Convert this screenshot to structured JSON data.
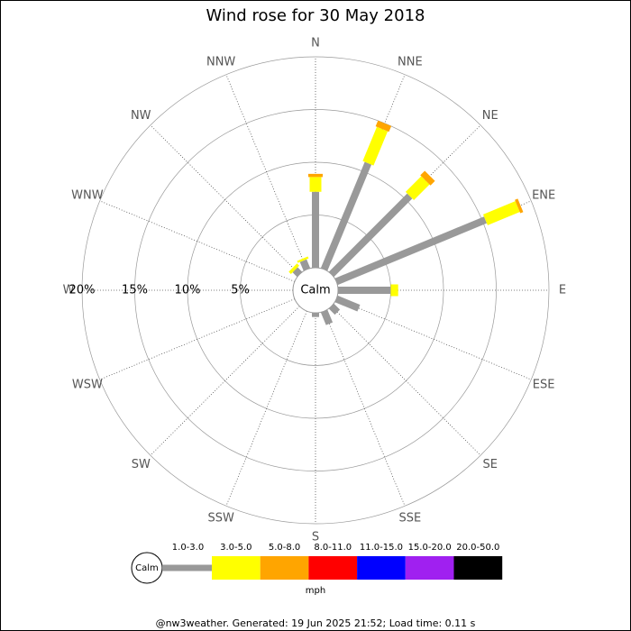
{
  "chart_data": {
    "type": "windrose",
    "title": "Wind rose for 30 May 2018",
    "directions": [
      "N",
      "NNE",
      "NE",
      "ENE",
      "E",
      "ESE",
      "SE",
      "SSE",
      "S",
      "SSW",
      "SW",
      "WSW",
      "W",
      "WNW",
      "NW",
      "NNW"
    ],
    "calm_label": "Calm",
    "rlim": [
      0,
      20
    ],
    "rticks": [
      {
        "value": 5,
        "label": "5%"
      },
      {
        "value": 10,
        "label": "10%"
      },
      {
        "value": 15,
        "label": "15%"
      },
      {
        "value": 20,
        "label": "20%"
      }
    ],
    "unit": "mph",
    "series": [
      {
        "name": "1.0-3.0",
        "color": "#999999",
        "values": [
          7.2,
          10.9,
          10.5,
          15.3,
          5.0,
          2.3,
          0.8,
          1.3,
          0.4,
          0,
          0,
          0,
          0,
          0,
          0.6,
          0.9
        ]
      },
      {
        "name": "3.0-5.0",
        "color": "#ffff00",
        "values": [
          1.4,
          3.5,
          2.1,
          3.3,
          0.7,
          0,
          0,
          0,
          0,
          0,
          0,
          0,
          0,
          0,
          0.3,
          0.2
        ]
      },
      {
        "name": "5.0-8.0",
        "color": "#ffa500",
        "values": [
          0.3,
          0.6,
          0.6,
          0.3,
          0,
          0,
          0,
          0,
          0,
          0,
          0,
          0,
          0,
          0,
          0,
          0
        ]
      },
      {
        "name": "8.0-11.0",
        "color": "#ff0000",
        "values": [
          0,
          0,
          0,
          0,
          0,
          0,
          0,
          0,
          0,
          0,
          0,
          0,
          0,
          0,
          0,
          0
        ]
      },
      {
        "name": "11.0-15.0",
        "color": "#0000ff",
        "values": [
          0,
          0,
          0,
          0,
          0,
          0,
          0,
          0,
          0,
          0,
          0,
          0,
          0,
          0,
          0,
          0
        ]
      },
      {
        "name": "15.0-20.0",
        "color": "#a020f0",
        "values": [
          0,
          0,
          0,
          0,
          0,
          0,
          0,
          0,
          0,
          0,
          0,
          0,
          0,
          0,
          0,
          0
        ]
      },
      {
        "name": "20.0-50.0",
        "color": "#000000",
        "values": [
          0,
          0,
          0,
          0,
          0,
          0,
          0,
          0,
          0,
          0,
          0,
          0,
          0,
          0,
          0,
          0
        ]
      }
    ],
    "footer": "@nw3weather. Generated: 19 Jun 2025 21:52; Load time: 0.11 s"
  }
}
